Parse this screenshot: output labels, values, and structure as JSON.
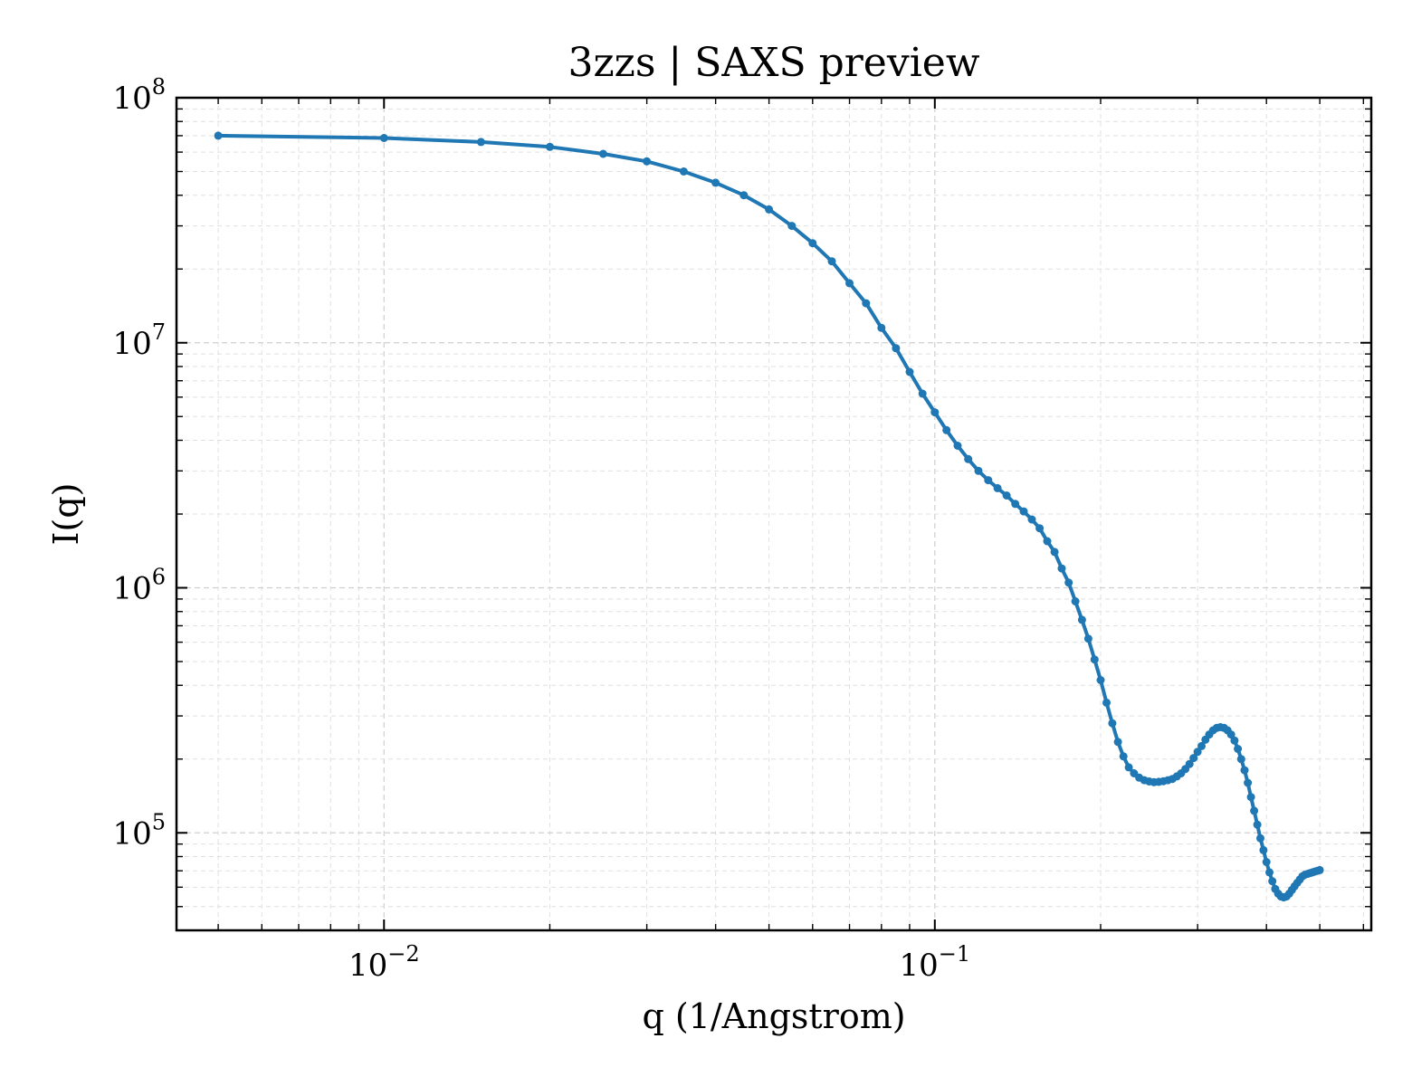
{
  "chart_data": {
    "type": "line",
    "title": "3zzs | SAXS preview",
    "xlabel": "q (1/Angstrom)",
    "ylabel": "I(q)",
    "x_scale": "log",
    "y_scale": "log",
    "xlim": [
      0.0042,
      0.62
    ],
    "ylim": [
      40000,
      100000000
    ],
    "grid": "major and minor, dashed",
    "ticks": "inward, all four sides",
    "x_major_ticks": [
      {
        "value": 0.01,
        "base": "10",
        "exp": "−2"
      },
      {
        "value": 0.1,
        "base": "10",
        "exp": "−1"
      }
    ],
    "y_major_ticks": [
      {
        "value": 100000,
        "base": "10",
        "exp": "5"
      },
      {
        "value": 1000000,
        "base": "10",
        "exp": "6"
      },
      {
        "value": 10000000,
        "base": "10",
        "exp": "7"
      },
      {
        "value": 100000000,
        "base": "10",
        "exp": "8"
      }
    ],
    "colors": {
      "series": "#1f77b4"
    },
    "series": [
      {
        "markers": "small circles",
        "x": [
          0.005,
          0.01,
          0.015,
          0.02,
          0.025,
          0.03,
          0.035,
          0.04,
          0.045,
          0.05,
          0.055,
          0.06,
          0.065,
          0.07,
          0.075,
          0.08,
          0.085,
          0.09,
          0.095,
          0.1,
          0.105,
          0.11,
          0.115,
          0.12,
          0.125,
          0.13,
          0.135,
          0.14,
          0.145,
          0.15,
          0.155,
          0.16,
          0.165,
          0.17,
          0.175,
          0.18,
          0.185,
          0.19,
          0.195,
          0.2,
          0.205,
          0.21,
          0.215,
          0.22,
          0.225,
          0.23,
          0.235,
          0.24,
          0.245,
          0.25,
          0.255,
          0.26,
          0.265,
          0.27,
          0.275,
          0.28,
          0.285,
          0.29,
          0.295,
          0.3,
          0.305,
          0.31,
          0.315,
          0.32,
          0.325,
          0.33,
          0.335,
          0.34,
          0.345,
          0.35,
          0.355,
          0.36,
          0.365,
          0.37,
          0.375,
          0.38,
          0.385,
          0.39,
          0.395,
          0.4,
          0.405,
          0.41,
          0.415,
          0.42,
          0.425,
          0.43,
          0.435,
          0.44,
          0.445,
          0.45,
          0.455,
          0.46,
          0.465,
          0.47,
          0.475,
          0.48,
          0.485,
          0.49,
          0.495,
          0.5
        ],
        "y": [
          70000000,
          68500000,
          66000000,
          63000000,
          59000000,
          55000000,
          50000000,
          45000000,
          40000000,
          35000000,
          30000000,
          25500000,
          21500000,
          17500000,
          14500000,
          11500000,
          9500000,
          7600000,
          6200000,
          5200000,
          4400000,
          3800000,
          3350000,
          3000000,
          2750000,
          2550000,
          2380000,
          2200000,
          2050000,
          1900000,
          1750000,
          1550000,
          1400000,
          1200000,
          1050000,
          880000,
          740000,
          620000,
          510000,
          420000,
          340000,
          280000,
          235000,
          205000,
          185000,
          175000,
          168000,
          164000,
          162000,
          161000,
          161500,
          162500,
          164000,
          166000,
          170000,
          175000,
          182000,
          191000,
          202000,
          214000,
          226000,
          240000,
          252000,
          262000,
          268000,
          270000,
          268000,
          262000,
          252000,
          238000,
          220000,
          200000,
          180000,
          160000,
          140000,
          123000,
          108000,
          95000,
          85000,
          76000,
          69000,
          63500,
          59000,
          56500,
          55000,
          54500,
          55000,
          56500,
          58500,
          60500,
          62500,
          64500,
          66500,
          67500,
          68000,
          68500,
          69000,
          69500,
          70000,
          70500
        ]
      }
    ]
  }
}
